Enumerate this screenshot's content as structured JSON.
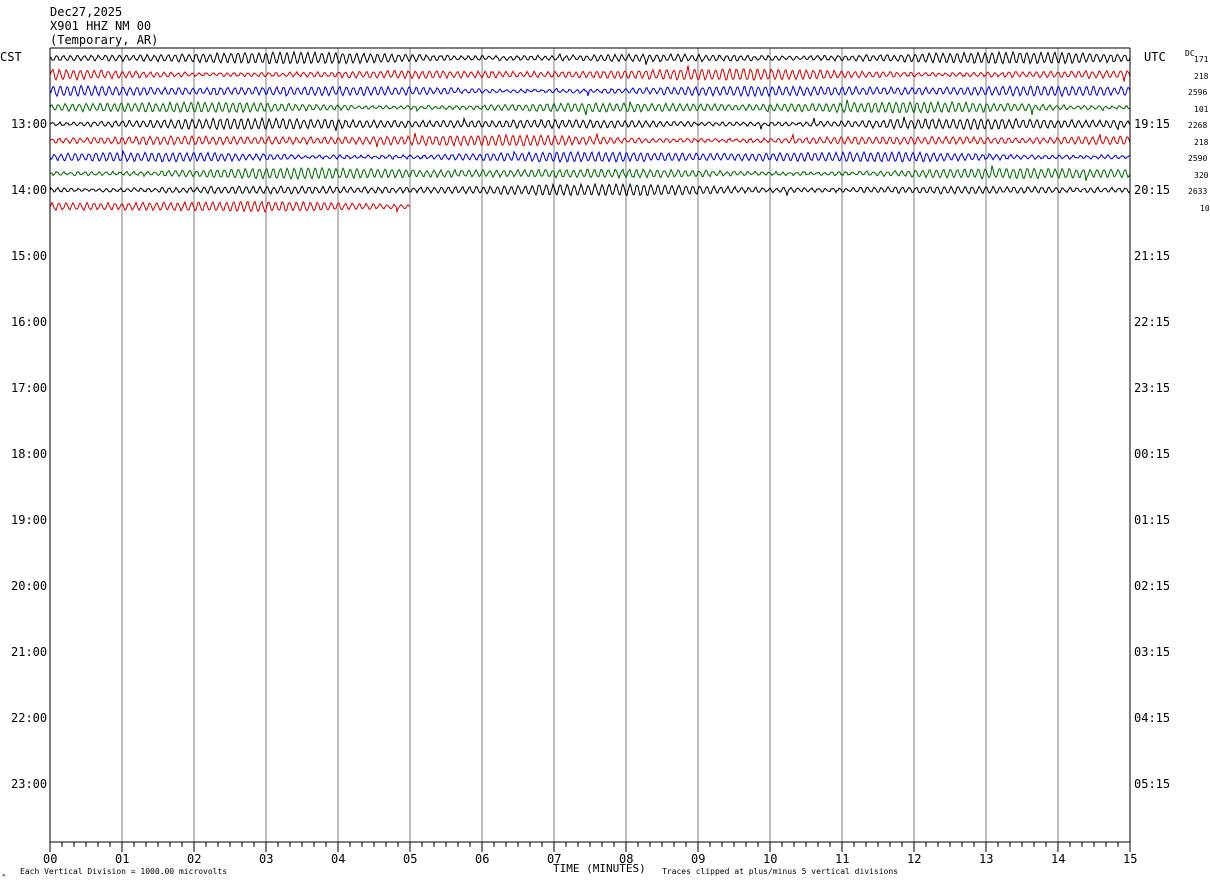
{
  "header": {
    "date": "Dec27,2025",
    "station": "X901 HHZ NM 00",
    "location": "(Temporary, AR)"
  },
  "axes": {
    "left_zone": "CST",
    "right_zone": "UTC",
    "dc_label": "DC",
    "xlabel": "TIME (MINUTES)",
    "footer_left": "Each Vertical Division = 1000.00 microvolts",
    "footer_right": "Traces clipped at plus/minus 5 vertical divisions"
  },
  "colors": {
    "trace_cycle": [
      "#000000",
      "#cc0000",
      "#0000cc",
      "#006600"
    ],
    "grid": "#808080",
    "frame": "#000000"
  },
  "chart_data": {
    "type": "line",
    "subtype": "helicorder",
    "x_ticks": [
      "00",
      "01",
      "02",
      "03",
      "04",
      "05",
      "06",
      "07",
      "08",
      "09",
      "10",
      "11",
      "12",
      "13",
      "14",
      "15"
    ],
    "xlim": [
      0,
      15
    ],
    "minutes_per_line": 15,
    "lines_per_hour": 4,
    "left_hour_labels": [
      "13:00",
      "14:00",
      "15:00",
      "16:00",
      "17:00",
      "18:00",
      "19:00",
      "20:00",
      "21:00",
      "22:00",
      "23:00"
    ],
    "right_hour_labels": [
      "19:15",
      "20:15",
      "21:15",
      "22:15",
      "23:15",
      "00:15",
      "01:15",
      "02:15",
      "03:15",
      "04:15",
      "05:15"
    ],
    "traces": [
      {
        "start": "12:00",
        "dc": "171",
        "end_minute": 15
      },
      {
        "start": "12:15",
        "dc": "218",
        "end_minute": 15
      },
      {
        "start": "12:30",
        "dc": "2596",
        "end_minute": 15
      },
      {
        "start": "12:45",
        "dc": "101",
        "end_minute": 15
      },
      {
        "start": "13:00",
        "dc": "2268",
        "end_minute": 15
      },
      {
        "start": "13:15",
        "dc": "218",
        "end_minute": 15
      },
      {
        "start": "13:30",
        "dc": "2590",
        "end_minute": 15
      },
      {
        "start": "13:45",
        "dc": "320",
        "end_minute": 15
      },
      {
        "start": "14:00",
        "dc": "2633",
        "end_minute": 15
      },
      {
        "start": "14:15",
        "dc": "10",
        "end_minute": 5
      }
    ],
    "vertical_division_microvolts": 1000,
    "clip_divisions": 5,
    "grid": true
  }
}
